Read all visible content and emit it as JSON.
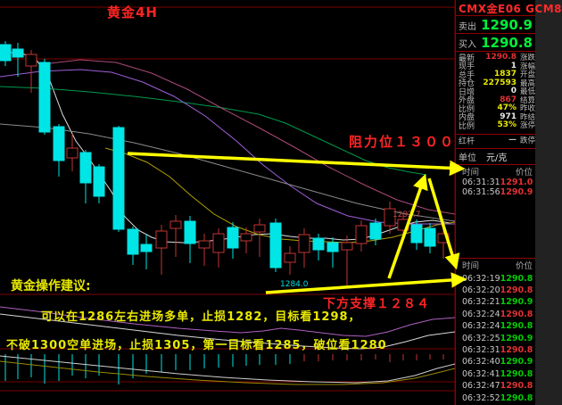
{
  "chart": {
    "title": "黄金4H",
    "annotations": {
      "resistance": "阻力位１３００",
      "support": "下方支撑１２８４",
      "advice_title": "黄金操作建议:",
      "advice_line1": "可以在1286左右进场多单，止损1282，目标看1298，",
      "advice_line2": "不破1300空单进场，止损1305，第一目标看1285，破位看1280",
      "price_low": "1284.0",
      "price_high": "1292.7",
      "resistance_level": 1300,
      "support_level": 1284
    }
  },
  "chart_data": {
    "type": "candlestick",
    "grid_lines_y": [
      8,
      66,
      330,
      391,
      428,
      438
    ],
    "candles": [
      [
        6,
        50,
        68,
        46,
        74,
        0
      ],
      [
        20,
        55,
        64,
        48,
        86,
        0
      ],
      [
        35,
        61,
        74,
        56,
        104,
        1
      ],
      [
        50,
        70,
        148,
        66,
        151,
        0
      ],
      [
        66,
        142,
        180,
        139,
        198,
        0
      ],
      [
        81,
        166,
        177,
        150,
        192,
        1
      ],
      [
        96,
        171,
        205,
        168,
        228,
        0
      ],
      [
        111,
        187,
        220,
        184,
        228,
        0
      ],
      [
        133,
        143,
        257,
        141,
        260,
        0
      ],
      [
        149,
        257,
        285,
        254,
        297,
        0
      ],
      [
        164,
        274,
        282,
        262,
        302,
        0
      ],
      [
        181,
        259,
        278,
        252,
        308,
        1
      ],
      [
        197,
        248,
        256,
        241,
        288,
        1
      ],
      [
        213,
        248,
        273,
        242,
        295,
        0
      ],
      [
        229,
        270,
        278,
        262,
        298,
        1
      ],
      [
        245,
        262,
        283,
        256,
        300,
        1
      ],
      [
        261,
        255,
        278,
        249,
        290,
        0
      ],
      [
        276,
        262,
        270,
        255,
        284,
        1
      ],
      [
        291,
        252,
        260,
        245,
        288,
        1
      ],
      [
        309,
        250,
        300,
        245,
        305,
        0
      ],
      [
        325,
        284,
        294,
        276,
        308,
        1
      ],
      [
        341,
        263,
        283,
        256,
        300,
        1
      ],
      [
        357,
        267,
        280,
        262,
        292,
        0
      ],
      [
        373,
        272,
        282,
        266,
        300,
        0
      ],
      [
        389,
        272,
        280,
        264,
        322,
        1
      ],
      [
        405,
        253,
        273,
        247,
        282,
        1
      ],
      [
        421,
        250,
        268,
        245,
        275,
        0
      ],
      [
        437,
        234,
        253,
        226,
        262,
        1
      ],
      [
        452,
        246,
        258,
        240,
        268,
        1
      ],
      [
        467,
        252,
        272,
        246,
        280,
        0
      ],
      [
        482,
        256,
        276,
        250,
        284,
        0
      ],
      [
        497,
        262,
        272,
        256,
        290,
        1
      ]
    ],
    "volume_bars": [
      [
        6,
        30
      ],
      [
        20,
        28
      ],
      [
        35,
        26
      ],
      [
        50,
        33
      ],
      [
        66,
        30
      ],
      [
        81,
        24
      ],
      [
        96,
        27
      ],
      [
        111,
        24
      ],
      [
        133,
        34
      ],
      [
        149,
        27
      ],
      [
        164,
        22
      ],
      [
        181,
        20
      ],
      [
        197,
        18
      ],
      [
        213,
        18
      ],
      [
        229,
        16
      ],
      [
        245,
        15
      ],
      [
        261,
        14
      ],
      [
        276,
        13
      ],
      [
        291,
        12
      ],
      [
        309,
        12
      ],
      [
        325,
        11
      ],
      [
        341,
        8
      ],
      [
        357,
        8
      ],
      [
        373,
        7
      ],
      [
        389,
        7
      ],
      [
        405,
        7
      ],
      [
        421,
        6
      ],
      [
        437,
        9
      ],
      [
        452,
        7
      ],
      [
        467,
        7
      ],
      [
        482,
        6
      ],
      [
        497,
        6
      ]
    ],
    "lines": [
      {
        "name": "ma-fast-white",
        "color": "#dcdcdc",
        "points": [
          [
            0,
            58
          ],
          [
            25,
            60
          ],
          [
            40,
            66
          ],
          [
            55,
            88
          ],
          [
            70,
            128
          ],
          [
            85,
            158
          ],
          [
            100,
            178
          ],
          [
            112,
            196
          ],
          [
            125,
            215
          ],
          [
            140,
            243
          ],
          [
            155,
            258
          ],
          [
            170,
            266
          ],
          [
            185,
            271
          ],
          [
            205,
            272
          ],
          [
            225,
            271
          ],
          [
            245,
            269
          ],
          [
            265,
            266
          ],
          [
            285,
            263
          ],
          [
            305,
            262
          ],
          [
            325,
            265
          ],
          [
            345,
            267
          ],
          [
            365,
            267
          ],
          [
            385,
            269
          ],
          [
            405,
            268
          ],
          [
            425,
            262
          ],
          [
            445,
            255
          ],
          [
            465,
            249
          ],
          [
            485,
            247
          ],
          [
            505,
            250
          ]
        ]
      },
      {
        "name": "ma-yellow",
        "color": "#b3a100",
        "points": [
          [
            118,
            166
          ],
          [
            140,
            172
          ],
          [
            165,
            182
          ],
          [
            190,
            198
          ],
          [
            215,
            220
          ],
          [
            240,
            240
          ],
          [
            265,
            254
          ],
          [
            290,
            263
          ],
          [
            315,
            268
          ],
          [
            340,
            270
          ],
          [
            365,
            271
          ],
          [
            390,
            272
          ],
          [
            415,
            270
          ],
          [
            440,
            266
          ],
          [
            465,
            259
          ],
          [
            490,
            252
          ],
          [
            510,
            249
          ]
        ]
      },
      {
        "name": "ma-green",
        "color": "#009a4d",
        "points": [
          [
            0,
            97
          ],
          [
            50,
            99
          ],
          [
            100,
            103
          ],
          [
            150,
            108
          ],
          [
            200,
            114
          ],
          [
            250,
            121
          ],
          [
            290,
            128
          ],
          [
            320,
            138
          ],
          [
            350,
            152
          ],
          [
            380,
            166
          ],
          [
            410,
            180
          ],
          [
            435,
            188
          ],
          [
            460,
            193
          ],
          [
            478,
            196
          ]
        ]
      },
      {
        "name": "ma-violet",
        "color": "#9f5fd9",
        "points": [
          [
            0,
            86
          ],
          [
            45,
            80
          ],
          [
            90,
            78
          ],
          [
            125,
            81
          ],
          [
            160,
            92
          ],
          [
            195,
            108
          ],
          [
            230,
            130
          ],
          [
            265,
            158
          ],
          [
            295,
            185
          ],
          [
            325,
            208
          ],
          [
            355,
            228
          ],
          [
            390,
            242
          ],
          [
            425,
            249
          ],
          [
            460,
            251
          ],
          [
            510,
            251
          ]
        ]
      },
      {
        "name": "ma-magenta",
        "color": "#aa4878",
        "points": [
          [
            48,
            72
          ],
          [
            90,
            67
          ],
          [
            130,
            70
          ],
          [
            170,
            82
          ],
          [
            210,
            100
          ],
          [
            250,
            122
          ],
          [
            290,
            143
          ],
          [
            330,
            165
          ],
          [
            370,
            188
          ],
          [
            410,
            208
          ],
          [
            445,
            224
          ],
          [
            480,
            235
          ],
          [
            510,
            240
          ]
        ]
      },
      {
        "name": "ma-gray",
        "color": "#8a8a8a",
        "points": [
          [
            0,
            139
          ],
          [
            50,
            143
          ],
          [
            100,
            150
          ],
          [
            150,
            160
          ],
          [
            200,
            172
          ],
          [
            250,
            186
          ],
          [
            300,
            200
          ],
          [
            350,
            214
          ],
          [
            400,
            228
          ],
          [
            450,
            239
          ],
          [
            510,
            248
          ]
        ]
      },
      {
        "name": "panel1-magenta",
        "color": "#b060c0",
        "points": [
          [
            0,
            344
          ],
          [
            50,
            350
          ],
          [
            100,
            357
          ],
          [
            150,
            363
          ],
          [
            200,
            368
          ],
          [
            240,
            371
          ],
          [
            270,
            373
          ],
          [
            295,
            371
          ],
          [
            315,
            368
          ],
          [
            335,
            370
          ],
          [
            360,
            373
          ],
          [
            385,
            376
          ],
          [
            410,
            377
          ],
          [
            435,
            372
          ],
          [
            460,
            364
          ],
          [
            485,
            358
          ],
          [
            510,
            356
          ]
        ]
      },
      {
        "name": "panel1-white",
        "color": "#d8d8d8",
        "points": [
          [
            0,
            352
          ],
          [
            50,
            358
          ],
          [
            100,
            364
          ],
          [
            150,
            370
          ],
          [
            200,
            376
          ],
          [
            250,
            381
          ],
          [
            300,
            385
          ],
          [
            340,
            388
          ],
          [
            375,
            390
          ],
          [
            405,
            391
          ],
          [
            430,
            389
          ],
          [
            455,
            383
          ],
          [
            480,
            376
          ],
          [
            510,
            372
          ]
        ]
      },
      {
        "name": "panel2-white",
        "color": "#cfcfcf",
        "points": [
          [
            0,
            399
          ],
          [
            50,
            404
          ],
          [
            100,
            409
          ],
          [
            150,
            414
          ],
          [
            200,
            419
          ],
          [
            250,
            423
          ],
          [
            300,
            426
          ],
          [
            350,
            428
          ],
          [
            400,
            429
          ],
          [
            435,
            427
          ],
          [
            465,
            421
          ],
          [
            490,
            413
          ],
          [
            510,
            408
          ]
        ]
      },
      {
        "name": "panel2-yellow",
        "color": "#9a8a00",
        "points": [
          [
            0,
            405
          ],
          [
            55,
            411
          ],
          [
            110,
            417
          ],
          [
            165,
            422
          ],
          [
            220,
            426
          ],
          [
            275,
            429
          ],
          [
            330,
            431
          ],
          [
            385,
            431
          ],
          [
            430,
            429
          ],
          [
            465,
            424
          ],
          [
            490,
            418
          ],
          [
            510,
            413
          ]
        ]
      }
    ],
    "arrows": [
      [
        143,
        172,
        518,
        189
      ],
      [
        298,
        328,
        520,
        313
      ],
      [
        436,
        312,
        476,
        198
      ],
      [
        481,
        200,
        511,
        299
      ]
    ]
  },
  "sidebar": {
    "contract": "CMX金E06  GCM8",
    "ask": {
      "label": "卖出",
      "value": "1290.9"
    },
    "bid": {
      "label": "买入",
      "value": "1290.8"
    },
    "quote_rows": [
      {
        "label": "最新",
        "value": "1290.8",
        "c": "red",
        "rlabel": "涨跌"
      },
      {
        "label": "现手",
        "value": "1",
        "c": "white",
        "rlabel": "涨幅"
      },
      {
        "label": "总手",
        "value": "1837",
        "c": "yellow",
        "rlabel": "开盘"
      },
      {
        "label": "持仓",
        "value": "227593",
        "c": "yellow",
        "rlabel": "最高"
      },
      {
        "label": "日增",
        "value": "0",
        "c": "white",
        "rlabel": "最低"
      },
      {
        "label": "外盘",
        "value": "867",
        "c": "red",
        "rlabel": "结算"
      },
      {
        "label": "比例",
        "value": "47%",
        "c": "yellow",
        "rlabel": "昨收"
      },
      {
        "label": "内盘",
        "value": "971",
        "c": "white",
        "rlabel": "昨结"
      },
      {
        "label": "比例",
        "value": "53%",
        "c": "yellow",
        "rlabel": "涨停"
      },
      {
        "label": "红杆",
        "value": "—",
        "c": "gray",
        "rlabel": "跌停"
      }
    ],
    "unit": {
      "label": "单位",
      "value": "元/克"
    },
    "tick_headers": [
      "时间",
      "价位"
    ],
    "ticks_recent": [
      {
        "time": "06:31:31",
        "price": "1291.0",
        "c": "red"
      },
      {
        "time": "06:31:56",
        "price": "1290.9",
        "c": "red"
      }
    ],
    "ticks": [
      {
        "time": "06:32:19",
        "price": "1290.8",
        "c": "green"
      },
      {
        "time": "06:32:20",
        "price": "1290.8",
        "c": "red"
      },
      {
        "time": "06:32:21",
        "price": "1290.9",
        "c": "green"
      },
      {
        "time": "06:32:24",
        "price": "1290.8",
        "c": "red"
      },
      {
        "time": "06:32:24",
        "price": "1290.8",
        "c": "green"
      },
      {
        "time": "06:32:25",
        "price": "1290.9",
        "c": "green"
      },
      {
        "time": "06:32:31",
        "price": "1290.8",
        "c": "red"
      },
      {
        "time": "06:32:40",
        "price": "1290.9",
        "c": "green"
      },
      {
        "time": "06:32:41",
        "price": "1290.8",
        "c": "green"
      },
      {
        "time": "06:32:47",
        "price": "1290.8",
        "c": "red"
      },
      {
        "time": "06:32:52",
        "price": "1290.8",
        "c": "green"
      }
    ]
  },
  "colors": {
    "grid": "#7d0000",
    "border": "#8f0000",
    "candle_down": "#00e5e5",
    "candle_up": "#c23535",
    "arrow": "#ffff00",
    "value_colors": {
      "red": "#e23030",
      "green": "#00cc00",
      "yellow": "#e9e900",
      "white": "#e9e9e9",
      "gray": "#bdbdbd"
    }
  }
}
